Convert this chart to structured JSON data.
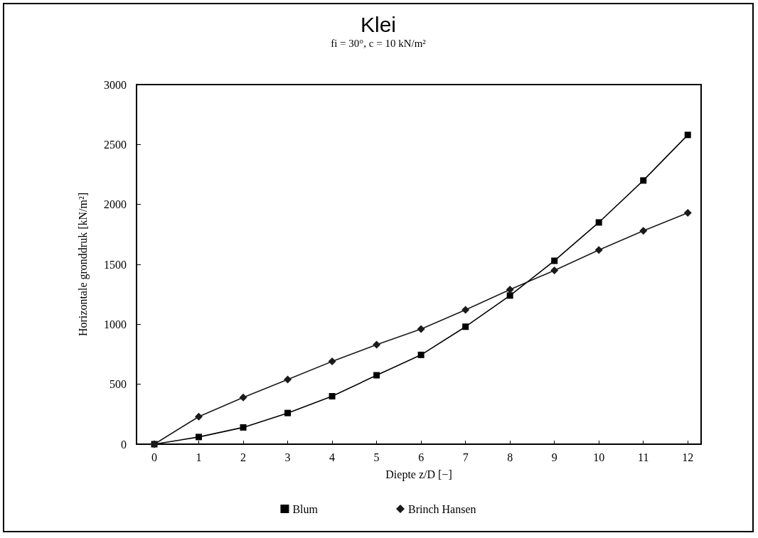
{
  "chart_data": {
    "type": "line",
    "title": "Klei",
    "subtitle": "fi = 30°, c = 10 kN/m²",
    "xlabel": "Diepte z/D [−]",
    "ylabel": "Horizontale gronddruk [kN/m²]",
    "x": [
      0,
      1,
      2,
      3,
      4,
      5,
      6,
      7,
      8,
      9,
      10,
      11,
      12
    ],
    "series": [
      {
        "name": "Blum",
        "color": "#000000",
        "marker": "square",
        "values": [
          0,
          60,
          140,
          260,
          400,
          575,
          745,
          980,
          1240,
          1530,
          1850,
          2200,
          2580
        ]
      },
      {
        "name": "Brinch Hansen",
        "color": "#1a1a1a",
        "marker": "diamond",
        "values": [
          0,
          230,
          390,
          540,
          690,
          830,
          960,
          1120,
          1290,
          1450,
          1620,
          1780,
          1930
        ]
      }
    ],
    "xlim": [
      -0.4,
      12.3
    ],
    "xticks": [
      0,
      1,
      2,
      3,
      4,
      5,
      6,
      7,
      8,
      9,
      10,
      11,
      12
    ],
    "ylim": [
      0,
      3000
    ],
    "yticks": [
      0,
      500,
      1000,
      1500,
      2000,
      2500,
      3000
    ],
    "grid": false,
    "legend": "bottom",
    "line_style": "solid"
  }
}
